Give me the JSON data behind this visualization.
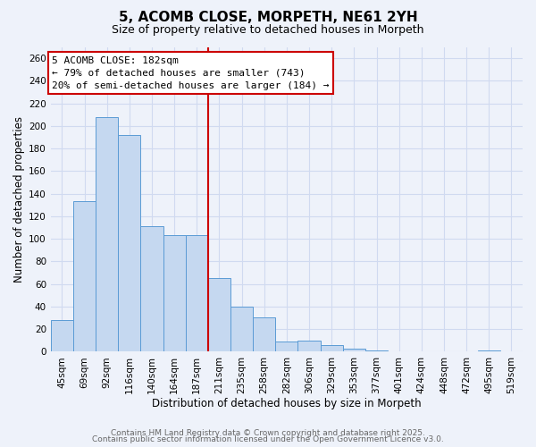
{
  "title": "5, ACOMB CLOSE, MORPETH, NE61 2YH",
  "subtitle": "Size of property relative to detached houses in Morpeth",
  "xlabel": "Distribution of detached houses by size in Morpeth",
  "ylabel": "Number of detached properties",
  "bar_labels": [
    "45sqm",
    "69sqm",
    "92sqm",
    "116sqm",
    "140sqm",
    "164sqm",
    "187sqm",
    "211sqm",
    "235sqm",
    "258sqm",
    "282sqm",
    "306sqm",
    "329sqm",
    "353sqm",
    "377sqm",
    "401sqm",
    "424sqm",
    "448sqm",
    "472sqm",
    "495sqm",
    "519sqm"
  ],
  "bar_values": [
    28,
    133,
    208,
    192,
    111,
    103,
    103,
    65,
    40,
    30,
    9,
    10,
    6,
    3,
    1,
    0,
    0,
    0,
    0,
    1,
    0
  ],
  "bar_color": "#c5d8f0",
  "bar_edge_color": "#5b9bd5",
  "vline_index": 6,
  "vline_color": "#cc0000",
  "ylim": [
    0,
    270
  ],
  "yticks": [
    0,
    20,
    40,
    60,
    80,
    100,
    120,
    140,
    160,
    180,
    200,
    220,
    240,
    260
  ],
  "annotation_title": "5 ACOMB CLOSE: 182sqm",
  "annotation_line1": "← 79% of detached houses are smaller (743)",
  "annotation_line2": "20% of semi-detached houses are larger (184) →",
  "footer1": "Contains HM Land Registry data © Crown copyright and database right 2025.",
  "footer2": "Contains public sector information licensed under the Open Government Licence v3.0.",
  "background_color": "#eef2fa",
  "grid_color": "#d0daf0",
  "title_fontsize": 11,
  "subtitle_fontsize": 9,
  "axis_label_fontsize": 8.5,
  "tick_fontsize": 7.5,
  "annotation_fontsize": 8,
  "footer_fontsize": 6.5
}
